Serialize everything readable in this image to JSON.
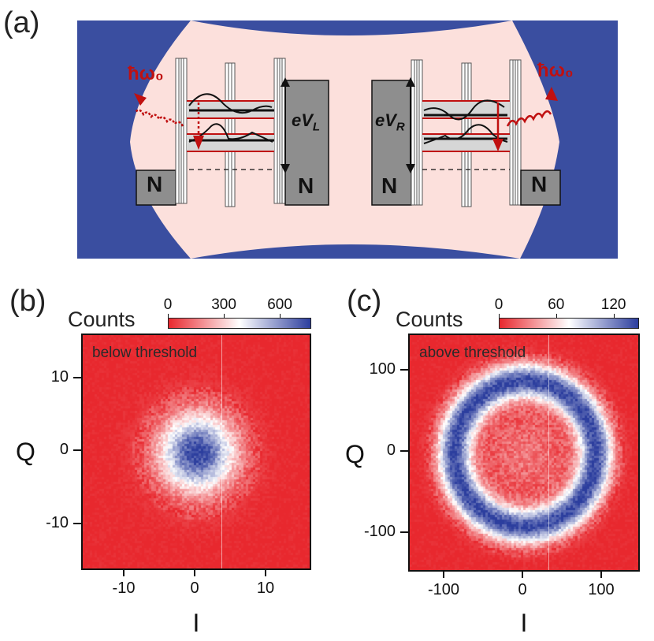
{
  "panel_a": {
    "label": "(a)",
    "photon_left": "ħω₀",
    "photon_right": "ħω₀",
    "voltage_left": "eV",
    "voltage_left_sub": "L",
    "voltage_right": "eV",
    "voltage_right_sub": "R",
    "lead_labels": [
      "N",
      "N",
      "N",
      "N"
    ],
    "colors": {
      "resonator": "#3a4ea0",
      "background": "#fce0dc",
      "photon": "#cc1a1a",
      "lead": "#8e8e8e"
    }
  },
  "panel_b": {
    "label": "(b)",
    "counts_label": "Counts",
    "note": "below threshold",
    "xlabel": "I",
    "ylabel": "Q"
  },
  "panel_c": {
    "label": "(c)",
    "counts_label": "Counts",
    "note": "above threshold",
    "xlabel": "I",
    "ylabel": "Q"
  },
  "chart_data": [
    {
      "type": "heatmap",
      "title": "",
      "note": "below threshold",
      "xlabel": "I",
      "ylabel": "Q",
      "xlim": [
        -16,
        16
      ],
      "ylim": [
        -16,
        16
      ],
      "xticks": [
        "-10",
        "0",
        "10"
      ],
      "yticks": [
        "10",
        "0",
        "-10"
      ],
      "colorbar": {
        "label": "Counts",
        "ticks": [
          "0",
          "300",
          "600"
        ],
        "range": [
          0,
          760
        ],
        "colors": [
          "#e8282e",
          "#ffffff",
          "#2c3e9e"
        ]
      },
      "distribution": {
        "shape": "gaussian-spot",
        "center": [
          0,
          0
        ],
        "radius": 3
      }
    },
    {
      "type": "heatmap",
      "title": "",
      "note": "above threshold",
      "xlabel": "I",
      "ylabel": "Q",
      "xlim": [
        -145,
        145
      ],
      "ylim": [
        -145,
        145
      ],
      "xticks": [
        "-100",
        "0",
        "100"
      ],
      "yticks": [
        "100",
        "0",
        "-100"
      ],
      "colorbar": {
        "label": "Counts",
        "ticks": [
          "0",
          "60",
          "120"
        ],
        "range": [
          0,
          145
        ],
        "colors": [
          "#e8282e",
          "#ffffff",
          "#2c3e9e"
        ]
      },
      "distribution": {
        "shape": "ring",
        "center": [
          0,
          0
        ],
        "radius": 90
      }
    }
  ]
}
